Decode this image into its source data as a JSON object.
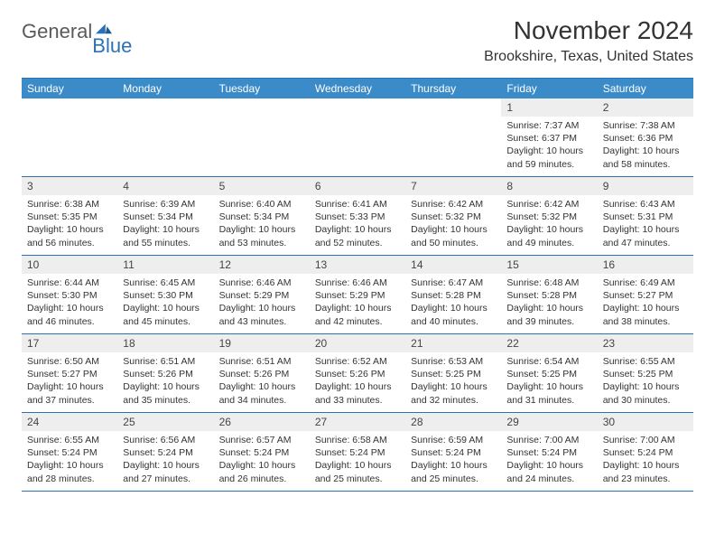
{
  "logo": {
    "word1": "General",
    "word2": "Blue"
  },
  "title": "November 2024",
  "location": "Brookshire, Texas, United States",
  "colors": {
    "header_bar": "#3b8bc8",
    "header_text": "#ffffff",
    "border": "#2a72b5",
    "daynum_bg": "#eeeeee",
    "text": "#333333"
  },
  "weekdays": [
    "Sunday",
    "Monday",
    "Tuesday",
    "Wednesday",
    "Thursday",
    "Friday",
    "Saturday"
  ],
  "weeks": [
    [
      {
        "n": "",
        "sr": "",
        "ss": "",
        "dl": ""
      },
      {
        "n": "",
        "sr": "",
        "ss": "",
        "dl": ""
      },
      {
        "n": "",
        "sr": "",
        "ss": "",
        "dl": ""
      },
      {
        "n": "",
        "sr": "",
        "ss": "",
        "dl": ""
      },
      {
        "n": "",
        "sr": "",
        "ss": "",
        "dl": ""
      },
      {
        "n": "1",
        "sr": "Sunrise: 7:37 AM",
        "ss": "Sunset: 6:37 PM",
        "dl": "Daylight: 10 hours and 59 minutes."
      },
      {
        "n": "2",
        "sr": "Sunrise: 7:38 AM",
        "ss": "Sunset: 6:36 PM",
        "dl": "Daylight: 10 hours and 58 minutes."
      }
    ],
    [
      {
        "n": "3",
        "sr": "Sunrise: 6:38 AM",
        "ss": "Sunset: 5:35 PM",
        "dl": "Daylight: 10 hours and 56 minutes."
      },
      {
        "n": "4",
        "sr": "Sunrise: 6:39 AM",
        "ss": "Sunset: 5:34 PM",
        "dl": "Daylight: 10 hours and 55 minutes."
      },
      {
        "n": "5",
        "sr": "Sunrise: 6:40 AM",
        "ss": "Sunset: 5:34 PM",
        "dl": "Daylight: 10 hours and 53 minutes."
      },
      {
        "n": "6",
        "sr": "Sunrise: 6:41 AM",
        "ss": "Sunset: 5:33 PM",
        "dl": "Daylight: 10 hours and 52 minutes."
      },
      {
        "n": "7",
        "sr": "Sunrise: 6:42 AM",
        "ss": "Sunset: 5:32 PM",
        "dl": "Daylight: 10 hours and 50 minutes."
      },
      {
        "n": "8",
        "sr": "Sunrise: 6:42 AM",
        "ss": "Sunset: 5:32 PM",
        "dl": "Daylight: 10 hours and 49 minutes."
      },
      {
        "n": "9",
        "sr": "Sunrise: 6:43 AM",
        "ss": "Sunset: 5:31 PM",
        "dl": "Daylight: 10 hours and 47 minutes."
      }
    ],
    [
      {
        "n": "10",
        "sr": "Sunrise: 6:44 AM",
        "ss": "Sunset: 5:30 PM",
        "dl": "Daylight: 10 hours and 46 minutes."
      },
      {
        "n": "11",
        "sr": "Sunrise: 6:45 AM",
        "ss": "Sunset: 5:30 PM",
        "dl": "Daylight: 10 hours and 45 minutes."
      },
      {
        "n": "12",
        "sr": "Sunrise: 6:46 AM",
        "ss": "Sunset: 5:29 PM",
        "dl": "Daylight: 10 hours and 43 minutes."
      },
      {
        "n": "13",
        "sr": "Sunrise: 6:46 AM",
        "ss": "Sunset: 5:29 PM",
        "dl": "Daylight: 10 hours and 42 minutes."
      },
      {
        "n": "14",
        "sr": "Sunrise: 6:47 AM",
        "ss": "Sunset: 5:28 PM",
        "dl": "Daylight: 10 hours and 40 minutes."
      },
      {
        "n": "15",
        "sr": "Sunrise: 6:48 AM",
        "ss": "Sunset: 5:28 PM",
        "dl": "Daylight: 10 hours and 39 minutes."
      },
      {
        "n": "16",
        "sr": "Sunrise: 6:49 AM",
        "ss": "Sunset: 5:27 PM",
        "dl": "Daylight: 10 hours and 38 minutes."
      }
    ],
    [
      {
        "n": "17",
        "sr": "Sunrise: 6:50 AM",
        "ss": "Sunset: 5:27 PM",
        "dl": "Daylight: 10 hours and 37 minutes."
      },
      {
        "n": "18",
        "sr": "Sunrise: 6:51 AM",
        "ss": "Sunset: 5:26 PM",
        "dl": "Daylight: 10 hours and 35 minutes."
      },
      {
        "n": "19",
        "sr": "Sunrise: 6:51 AM",
        "ss": "Sunset: 5:26 PM",
        "dl": "Daylight: 10 hours and 34 minutes."
      },
      {
        "n": "20",
        "sr": "Sunrise: 6:52 AM",
        "ss": "Sunset: 5:26 PM",
        "dl": "Daylight: 10 hours and 33 minutes."
      },
      {
        "n": "21",
        "sr": "Sunrise: 6:53 AM",
        "ss": "Sunset: 5:25 PM",
        "dl": "Daylight: 10 hours and 32 minutes."
      },
      {
        "n": "22",
        "sr": "Sunrise: 6:54 AM",
        "ss": "Sunset: 5:25 PM",
        "dl": "Daylight: 10 hours and 31 minutes."
      },
      {
        "n": "23",
        "sr": "Sunrise: 6:55 AM",
        "ss": "Sunset: 5:25 PM",
        "dl": "Daylight: 10 hours and 30 minutes."
      }
    ],
    [
      {
        "n": "24",
        "sr": "Sunrise: 6:55 AM",
        "ss": "Sunset: 5:24 PM",
        "dl": "Daylight: 10 hours and 28 minutes."
      },
      {
        "n": "25",
        "sr": "Sunrise: 6:56 AM",
        "ss": "Sunset: 5:24 PM",
        "dl": "Daylight: 10 hours and 27 minutes."
      },
      {
        "n": "26",
        "sr": "Sunrise: 6:57 AM",
        "ss": "Sunset: 5:24 PM",
        "dl": "Daylight: 10 hours and 26 minutes."
      },
      {
        "n": "27",
        "sr": "Sunrise: 6:58 AM",
        "ss": "Sunset: 5:24 PM",
        "dl": "Daylight: 10 hours and 25 minutes."
      },
      {
        "n": "28",
        "sr": "Sunrise: 6:59 AM",
        "ss": "Sunset: 5:24 PM",
        "dl": "Daylight: 10 hours and 25 minutes."
      },
      {
        "n": "29",
        "sr": "Sunrise: 7:00 AM",
        "ss": "Sunset: 5:24 PM",
        "dl": "Daylight: 10 hours and 24 minutes."
      },
      {
        "n": "30",
        "sr": "Sunrise: 7:00 AM",
        "ss": "Sunset: 5:24 PM",
        "dl": "Daylight: 10 hours and 23 minutes."
      }
    ]
  ]
}
